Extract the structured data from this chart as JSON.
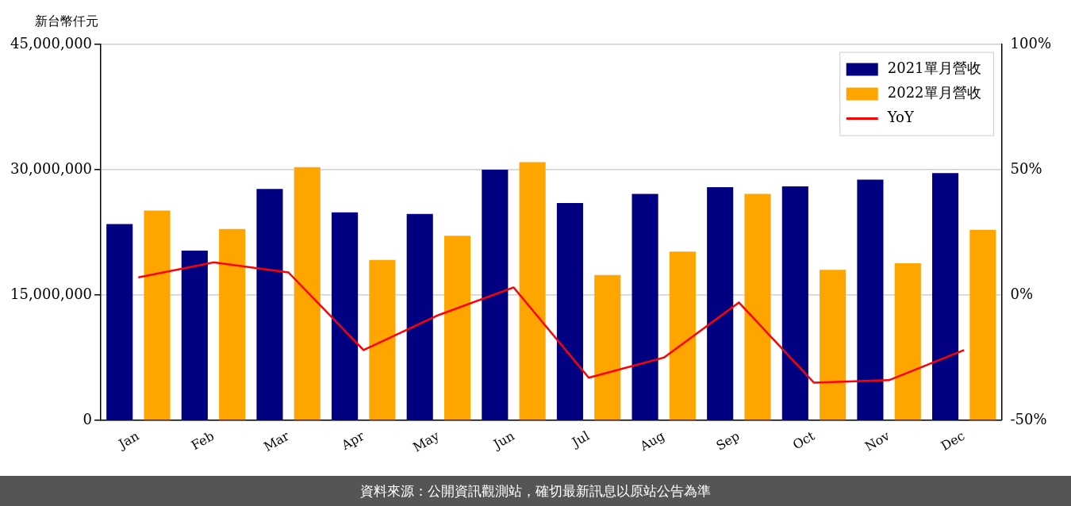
{
  "chart_data": {
    "type": "bar",
    "ylabel": "新台幣仟元",
    "categories": [
      "Jan",
      "Feb",
      "Mar",
      "Apr",
      "May",
      "Jun",
      "Jul",
      "Aug",
      "Sep",
      "Oct",
      "Nov",
      "Dec"
    ],
    "series": [
      {
        "name": "2021單月營收",
        "color": "#000080",
        "values": [
          23500000,
          20300000,
          27700000,
          24900000,
          24700000,
          30000000,
          26000000,
          27100000,
          27900000,
          28000000,
          28800000,
          29600000
        ]
      },
      {
        "name": "2022單月營收",
        "color": "#ffa500",
        "values": [
          25100000,
          22900000,
          30300000,
          19200000,
          22100000,
          30900000,
          17400000,
          20200000,
          27100000,
          18000000,
          18800000,
          22800000
        ]
      },
      {
        "name": "YoY",
        "type": "line",
        "axis": "y2",
        "color": "#ff0000",
        "values": [
          7,
          13,
          9,
          -22,
          -8,
          3,
          -33,
          -25,
          -3,
          -35,
          -34,
          -22
        ]
      }
    ],
    "ylim": [
      0,
      45000000
    ],
    "yticks": [
      {
        "value": 0,
        "label": "0"
      },
      {
        "value": 15000000,
        "label": "15,000,000"
      },
      {
        "value": 30000000,
        "label": "30,000,000"
      },
      {
        "value": 45000000,
        "label": "45,000,000"
      }
    ],
    "y2lim": [
      -50,
      100
    ],
    "y2ticks": [
      {
        "value": -50,
        "label": "-50%"
      },
      {
        "value": 0,
        "label": "0%"
      },
      {
        "value": 50,
        "label": "50%"
      },
      {
        "value": 100,
        "label": "100%"
      }
    ],
    "grid": "y",
    "legend": "top right",
    "marker": "none",
    "annotations": [
      "資料來源：公開資訊觀測站，確切最新訊息以原站公告為準"
    ]
  }
}
